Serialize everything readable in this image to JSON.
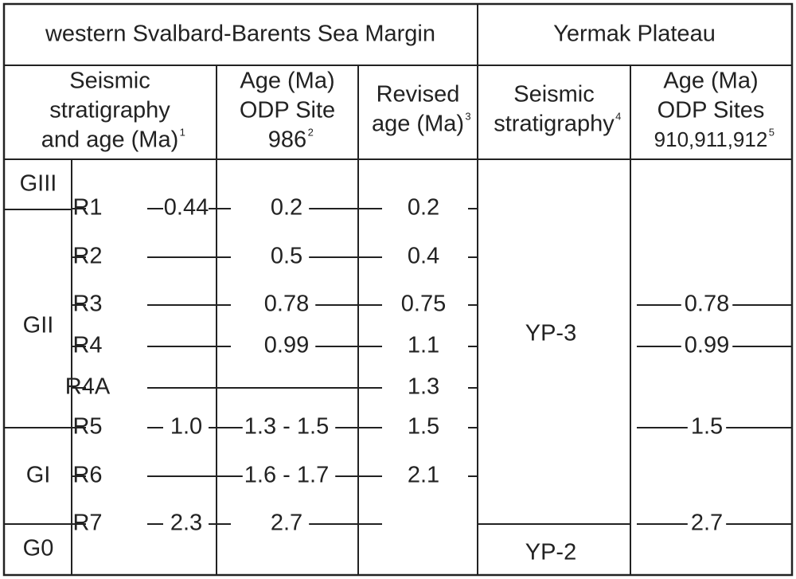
{
  "header": {
    "left": "western Svalbard-Barents Sea Margin",
    "right": "Yermak Plateau"
  },
  "columns": [
    {
      "lines": [
        "Seismic",
        "stratigraphy",
        "and age (Ma)"
      ],
      "note": "1"
    },
    {
      "lines": [
        "Age (Ma)",
        "ODP Site",
        "986"
      ],
      "note": "2"
    },
    {
      "lines": [
        "Revised",
        "age (Ma)"
      ],
      "note": "3"
    },
    {
      "lines": [
        "Seismic",
        "stratigraphy"
      ],
      "note": "4"
    },
    {
      "lines": [
        "Age (Ma)",
        "ODP Sites",
        "910,911,912"
      ],
      "note": "5"
    }
  ],
  "groups": [
    "GIII",
    "GII",
    "GI",
    "G0"
  ],
  "units": [
    "YP-3",
    "YP-2"
  ],
  "rows": [
    {
      "label": "R1",
      "age": "0.44",
      "odp": "0.2",
      "revised": "0.2"
    },
    {
      "label": "R2",
      "odp": "0.5",
      "revised": "0.4"
    },
    {
      "label": "R3",
      "odp": "0.78",
      "revised": "0.75",
      "yermak": "0.78"
    },
    {
      "label": "R4",
      "odp": "0.99",
      "revised": "1.1",
      "yermak": "0.99"
    },
    {
      "label": "R4A",
      "revised": "1.3"
    },
    {
      "label": "R5",
      "age": "1.0",
      "odp": "1.3 - 1.5",
      "revised": "1.5",
      "yermak": "1.5"
    },
    {
      "label": "R6",
      "odp": "1.6 - 1.7",
      "revised": "2.1"
    },
    {
      "label": "R7",
      "age": "2.3",
      "odp": "2.7",
      "yermak": "2.7"
    }
  ]
}
